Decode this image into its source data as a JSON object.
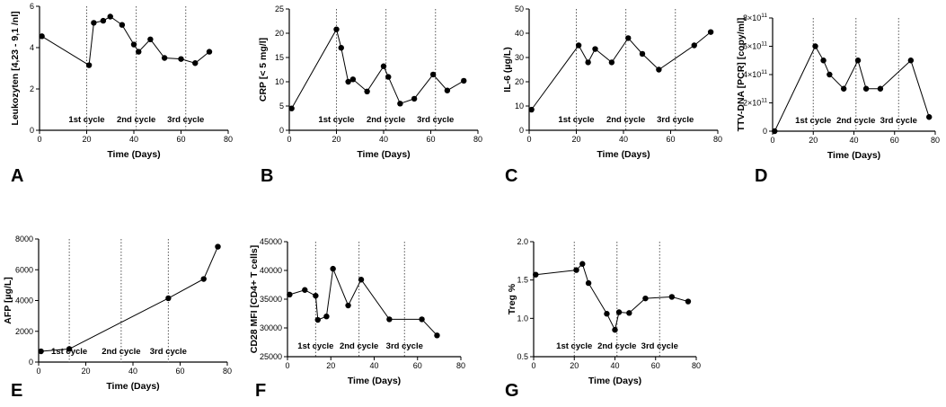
{
  "figure": {
    "panel_letters": [
      "A",
      "B",
      "C",
      "D",
      "E",
      "F",
      "G"
    ]
  },
  "chart_data": [
    {
      "panel": "A",
      "type": "line",
      "xlabel": "Time (Days)",
      "ylabel": "Leukozyten [4,23 - 9,1 /nl]",
      "xlim": [
        0,
        80
      ],
      "ylim": [
        0,
        6
      ],
      "xticks": [
        0,
        20,
        40,
        60,
        80
      ],
      "xtick_labels": [
        "0",
        "20",
        "40",
        "60",
        "80"
      ],
      "yticks": [
        0,
        2,
        4,
        6
      ],
      "ytick_labels": [
        "0",
        "2",
        "4",
        "6"
      ],
      "x": [
        1,
        21,
        23,
        27,
        30,
        35,
        40,
        42,
        47,
        53,
        60,
        66,
        72
      ],
      "y": [
        4.55,
        3.15,
        5.2,
        5.3,
        5.5,
        5.1,
        4.15,
        3.8,
        4.4,
        3.5,
        3.45,
        3.25,
        3.8
      ],
      "cycle_lines": [
        20,
        41,
        62
      ],
      "cycle_labels": [
        "1st cycle",
        "2nd cycle",
        "3rd cycle"
      ]
    },
    {
      "panel": "B",
      "type": "line",
      "xlabel": "Time (Days)",
      "ylabel": "CRP [< 5 mg/l]",
      "xlim": [
        0,
        80
      ],
      "ylim": [
        0,
        25
      ],
      "xticks": [
        0,
        20,
        40,
        60,
        80
      ],
      "xtick_labels": [
        "0",
        "20",
        "40",
        "60",
        "80"
      ],
      "yticks": [
        0,
        5,
        10,
        15,
        20,
        25
      ],
      "ytick_labels": [
        "0",
        "5",
        "10",
        "15",
        "20",
        "25"
      ],
      "x": [
        1,
        20,
        22,
        25,
        27,
        33,
        40,
        42,
        47,
        53,
        61,
        67,
        74
      ],
      "y": [
        4.5,
        20.8,
        17,
        10,
        10.5,
        8,
        13.2,
        11,
        5.5,
        6.5,
        11.5,
        8.2,
        10.2
      ],
      "cycle_lines": [
        20,
        41,
        62
      ],
      "cycle_labels": [
        "1st cycle",
        "2nd cycle",
        "3rd cycle"
      ]
    },
    {
      "panel": "C",
      "type": "line",
      "xlabel": "Time (Days)",
      "ylabel": "IL-6 (µg/L)",
      "xlim": [
        0,
        80
      ],
      "ylim": [
        0,
        50
      ],
      "xticks": [
        0,
        20,
        40,
        60,
        80
      ],
      "xtick_labels": [
        "0",
        "20",
        "40",
        "60",
        "80"
      ],
      "yticks": [
        0,
        10,
        20,
        30,
        40,
        50
      ],
      "ytick_labels": [
        "0",
        "10",
        "20",
        "30",
        "40",
        "50"
      ],
      "x": [
        1,
        21,
        25,
        28,
        35,
        42,
        48,
        55,
        70,
        77
      ],
      "y": [
        8.5,
        35,
        28,
        33.5,
        28,
        38,
        31.5,
        25,
        35,
        40.5
      ],
      "cycle_lines": [
        20,
        41,
        62
      ],
      "cycle_labels": [
        "1st cycle",
        "2nd cycle",
        "3rd cycle"
      ]
    },
    {
      "panel": "D",
      "type": "line",
      "xlabel": "Time (Days)",
      "ylabel": "TTV-DNA [PCR] [copy/ml]",
      "xlim": [
        0,
        80
      ],
      "ylim": [
        0,
        800000000000
      ],
      "xticks": [
        0,
        20,
        40,
        60,
        80
      ],
      "xtick_labels": [
        "0",
        "20",
        "40",
        "60",
        "80"
      ],
      "yticks": [
        0,
        200000000000,
        400000000000,
        600000000000,
        800000000000
      ],
      "ytick_base": [
        "0",
        "2×10",
        "4×10",
        "6×10",
        "8×10"
      ],
      "ytick_exp": [
        "",
        "11",
        "11",
        "11",
        "11"
      ],
      "x": [
        1,
        21,
        25,
        28,
        35,
        42,
        46,
        53,
        68,
        77
      ],
      "y": [
        0,
        600000000000,
        500000000000,
        400000000000,
        300000000000,
        500000000000,
        300000000000,
        300000000000,
        500000000000,
        100000000000
      ],
      "cycle_lines": [
        20,
        41,
        62
      ],
      "cycle_labels": [
        "1st cycle",
        "2nd cycle",
        "3rd cycle"
      ]
    },
    {
      "panel": "E",
      "type": "line",
      "xlabel": "Time (Days)",
      "ylabel": "AFP [µg/L]",
      "xlim": [
        0,
        80
      ],
      "ylim": [
        0,
        8000
      ],
      "xticks": [
        0,
        20,
        40,
        60,
        80
      ],
      "xtick_labels": [
        "0",
        "20",
        "40",
        "60",
        "80"
      ],
      "yticks": [
        0,
        2000,
        4000,
        6000,
        8000
      ],
      "ytick_labels": [
        "0",
        "2000",
        "4000",
        "6000",
        "8000"
      ],
      "x": [
        1,
        13,
        55,
        70,
        76
      ],
      "y": [
        700,
        850,
        4150,
        5400,
        7500
      ],
      "cycle_lines": [
        13,
        35,
        55
      ],
      "cycle_labels": [
        "1st cycle",
        "2nd cycle",
        "3rd cycle"
      ]
    },
    {
      "panel": "F",
      "type": "line",
      "xlabel": "Time (Days)",
      "ylabel": "CD28 MFI [CD4+ T cells]",
      "xlim": [
        0,
        80
      ],
      "ylim": [
        25000,
        45000
      ],
      "xticks": [
        0,
        20,
        40,
        60,
        80
      ],
      "xtick_labels": [
        "0",
        "20",
        "40",
        "60",
        "80"
      ],
      "yticks": [
        25000,
        30000,
        35000,
        40000,
        45000
      ],
      "ytick_labels": [
        "25000",
        "30000",
        "35000",
        "40000",
        "45000"
      ],
      "x": [
        1,
        8,
        13,
        14,
        18,
        21,
        28,
        34,
        47,
        62,
        69
      ],
      "y": [
        35800,
        36600,
        35600,
        31400,
        32000,
        40300,
        33900,
        38400,
        31500,
        31500,
        28700
      ],
      "cycle_lines": [
        13,
        33,
        54
      ],
      "cycle_labels": [
        "1st cycle",
        "2nd cycle",
        "3rd cycle"
      ]
    },
    {
      "panel": "G",
      "type": "line",
      "xlabel": "Time (Days)",
      "ylabel": "Treg %",
      "xlim": [
        0,
        80
      ],
      "ylim": [
        0.5,
        2.0
      ],
      "xticks": [
        0,
        20,
        40,
        60,
        80
      ],
      "xtick_labels": [
        "0",
        "20",
        "40",
        "60",
        "80"
      ],
      "yticks": [
        0.5,
        1.0,
        1.5,
        2.0
      ],
      "ytick_labels": [
        "0.5",
        "1.0",
        "1.5",
        "2.0"
      ],
      "x": [
        1,
        21,
        24,
        27,
        36,
        40,
        42,
        47,
        55,
        68,
        76
      ],
      "y": [
        1.57,
        1.63,
        1.71,
        1.46,
        1.06,
        0.85,
        1.08,
        1.07,
        1.26,
        1.28,
        1.22
      ],
      "cycle_lines": [
        20,
        41,
        62
      ],
      "cycle_labels": [
        "1st cycle",
        "2nd cycle",
        "3rd cycle"
      ]
    }
  ]
}
